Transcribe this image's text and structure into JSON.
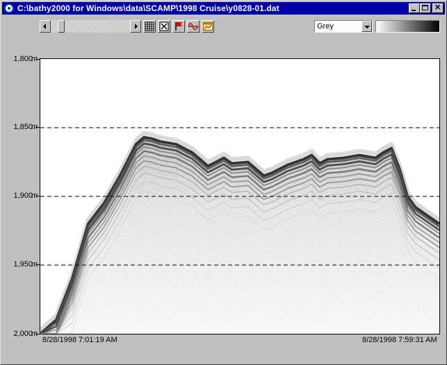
{
  "window": {
    "title": "C:\\bathy2000 for Windows\\data\\SCAMP\\1998 Cruise\\y0828-01.dat"
  },
  "toolbar": {
    "buttons": [
      {
        "name": "grid-icon"
      },
      {
        "name": "mark-x-icon"
      },
      {
        "name": "flag-icon"
      },
      {
        "name": "waveform-icon"
      },
      {
        "name": "chart-window-icon"
      }
    ],
    "palette_select": {
      "value": "Grey"
    }
  },
  "chart_data": {
    "type": "heatmap",
    "title": "",
    "xlabel": "",
    "ylabel": "",
    "ylim": [
      2000,
      1800
    ],
    "y_ticks": [
      "1,800",
      "1,850",
      "1,900",
      "1,950",
      "2,000"
    ],
    "y_unit": "m",
    "x_start": "8/28/1998 7:01:19 AM",
    "x_end": "8/28/1998 7:59:31 AM",
    "gridlines_m": [
      1850,
      1900,
      1950
    ],
    "colormap": "grey",
    "seafloor_depth_profile": {
      "x_fraction": [
        0.0,
        0.04,
        0.08,
        0.12,
        0.16,
        0.2,
        0.24,
        0.26,
        0.28,
        0.3,
        0.34,
        0.38,
        0.42,
        0.44,
        0.46,
        0.48,
        0.52,
        0.54,
        0.56,
        0.58,
        0.62,
        0.66,
        0.68,
        0.7,
        0.72,
        0.76,
        0.8,
        0.84,
        0.86,
        0.88,
        0.9,
        0.92,
        0.94,
        0.96,
        1.0
      ],
      "depth_m": [
        2000,
        1990,
        1960,
        1920,
        1905,
        1885,
        1862,
        1857,
        1858,
        1860,
        1862,
        1868,
        1878,
        1875,
        1872,
        1876,
        1875,
        1880,
        1885,
        1883,
        1877,
        1873,
        1870,
        1876,
        1873,
        1872,
        1870,
        1872,
        1868,
        1865,
        1880,
        1900,
        1908,
        1912,
        1920
      ]
    }
  }
}
